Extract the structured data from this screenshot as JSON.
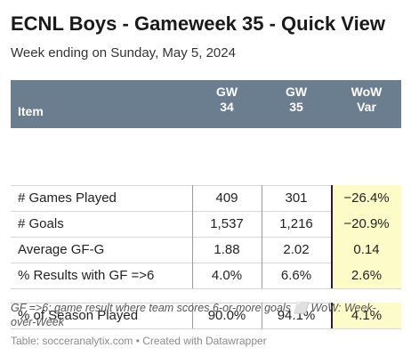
{
  "title": "ECNL Boys - Gameweek 35 - Quick View",
  "subtitle": "Week ending on Sunday, May 5, 2024",
  "colors": {
    "header_bg": "#6a7e8f",
    "highlight_bg": "#fdfbc8"
  },
  "chart_data": {
    "type": "table",
    "columns": [
      {
        "key": "item",
        "label_lines": [
          "Item"
        ]
      },
      {
        "key": "gw34",
        "label_lines": [
          "GW",
          "34"
        ]
      },
      {
        "key": "gw35",
        "label_lines": [
          "GW",
          "35"
        ]
      },
      {
        "key": "var",
        "label_lines": [
          "WoW",
          "Var"
        ]
      }
    ],
    "rows": [
      {
        "item": "# Games Played",
        "gw34": "409",
        "gw35": "301",
        "var": "−26.4%"
      },
      {
        "item": "# Goals",
        "gw34": "1,537",
        "gw35": "1,216",
        "var": "−20.9%"
      },
      {
        "item": "Average GF-G",
        "gw34": "1.88",
        "gw35": "2.02",
        "var": "0.14"
      },
      {
        "item": "% Results with GF =>6",
        "gw34": "4.0%",
        "gw35": "6.6%",
        "var": "2.6%"
      },
      {
        "item": "% of Season Played",
        "gw34": "90.0%",
        "gw35": "94.1%",
        "var": "4.1%"
      }
    ]
  },
  "footnote": "GF =>6: game result where team scores 6-or-more goals ⬜ WoW: Week-over-Week",
  "source": "Table: socceranalytix.com • Created with Datawrapper"
}
